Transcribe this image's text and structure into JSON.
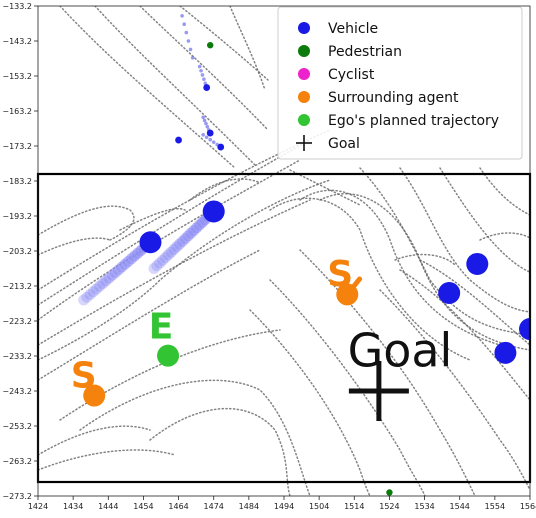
{
  "chart_data": {
    "type": "scatter",
    "xlim": [
      1424,
      1564
    ],
    "ylim": [
      -273.2,
      -133.2
    ],
    "x_ticks": [
      1424,
      1434,
      1444,
      1454,
      1464,
      1474,
      1484,
      1494,
      1504,
      1514,
      1524,
      1534,
      1544,
      1554,
      1564
    ],
    "x_tick_labels": [
      "1424",
      "1434",
      "1444",
      "1454",
      "1464",
      "1474",
      "1484",
      "1494",
      "1504",
      "1514",
      "1524",
      "1534",
      "1544",
      "1554",
      "1564"
    ],
    "y_ticks": [
      -133.2,
      -143.2,
      -153.2,
      -163.2,
      -173.2,
      -183.2,
      -193.2,
      -203.2,
      -213.2,
      -223.2,
      -233.2,
      -243.2,
      -253.2,
      -263.2,
      -273.2
    ],
    "y_tick_labels": [
      "−133.2",
      "−143.2",
      "−153.2",
      "−163.2",
      "−173.2",
      "−183.2",
      "−193.2",
      "−203.2",
      "−213.2",
      "−223.2",
      "−233.2",
      "−243.2",
      "−253.2",
      "−263.2",
      "−273.2"
    ],
    "legend": {
      "placement": "top-right",
      "entries": [
        {
          "label": "Vehicle",
          "marker": "circle",
          "color": "#1a1ae6"
        },
        {
          "label": "Pedestrian",
          "marker": "circle",
          "color": "#0a7a0a"
        },
        {
          "label": "Cyclist",
          "marker": "circle",
          "color": "#ee22cc"
        },
        {
          "label": "Surrounding agent",
          "marker": "circle",
          "color": "#f5820c"
        },
        {
          "label": "Ego's planned trajectory",
          "marker": "circle",
          "color": "#33c433"
        },
        {
          "label": "Goal",
          "marker": "plus",
          "color": "#111111"
        }
      ]
    },
    "zoom_box": {
      "x": [
        1424,
        1564
      ],
      "y": [
        -269.2,
        -181.2
      ]
    },
    "series": [
      {
        "name": "Vehicle",
        "color": "#1a1ae6",
        "points": [
          [
            1456,
            -200.7
          ],
          [
            1474,
            -191.9
          ],
          [
            1541,
            -215.2
          ],
          [
            1549,
            -206.9
          ],
          [
            1557,
            -232.3
          ],
          [
            1564,
            -225.5
          ],
          [
            1472,
            -156.5
          ],
          [
            1473,
            -169.5
          ],
          [
            1476,
            -173.5
          ],
          [
            1464,
            -171.5
          ]
        ]
      },
      {
        "name": "Pedestrian",
        "color": "#0a7a0a",
        "points": [
          [
            1473,
            -144.4
          ],
          [
            1524,
            -272.2
          ]
        ]
      },
      {
        "name": "Surrounding agent",
        "color": "#f5820c",
        "points": [
          [
            1512,
            -215.6
          ],
          [
            1440,
            -244.5
          ]
        ]
      },
      {
        "name": "Ego's planned trajectory",
        "color": "#33c433",
        "points": [
          [
            1461,
            -233.1
          ]
        ]
      },
      {
        "name": "Goal",
        "color": "#111111",
        "points": [
          [
            1521,
            -243.2
          ]
        ]
      }
    ],
    "history_trails": [
      {
        "color": "#8d8df4",
        "from": [
          1437,
          -217.2
        ],
        "to": [
          1456,
          -200.7
        ]
      },
      {
        "color": "#8d8df4",
        "from": [
          1457,
          -208.2
        ],
        "to": [
          1474,
          -191.9
        ]
      }
    ],
    "annotations": [
      {
        "text": "S",
        "x": 1510,
        "y": -213.2,
        "color": "#f5820c"
      },
      {
        "text": "S",
        "x": 1437,
        "y": -242.2,
        "color": "#f5820c"
      },
      {
        "text": "E",
        "x": 1459,
        "y": -228.2,
        "color": "#33c433"
      },
      {
        "text": "Goal",
        "x": 1527,
        "y": -236.2,
        "color": "#111111"
      }
    ]
  }
}
